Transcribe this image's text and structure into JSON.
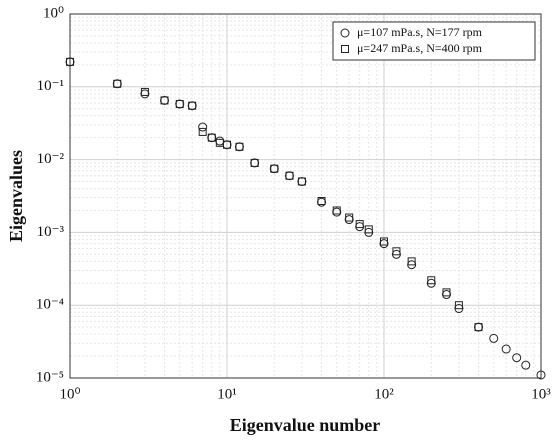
{
  "chart_data": {
    "type": "scatter",
    "xlabel": "Eigenvalue number",
    "ylabel": "Eigenvalues",
    "xscale": "log",
    "yscale": "log",
    "xlim": [
      1,
      1000
    ],
    "ylim": [
      1e-05,
      1
    ],
    "xticks": [
      {
        "value": 1,
        "label": "10⁰"
      },
      {
        "value": 10,
        "label": "10¹"
      },
      {
        "value": 100,
        "label": "10²"
      },
      {
        "value": 1000,
        "label": "10³"
      }
    ],
    "yticks": [
      {
        "value": 1e-05,
        "label": "10⁻⁵"
      },
      {
        "value": 0.0001,
        "label": "10⁻⁴"
      },
      {
        "value": 0.001,
        "label": "10⁻³"
      },
      {
        "value": 0.01,
        "label": "10⁻²"
      },
      {
        "value": 0.1,
        "label": "10⁻¹"
      },
      {
        "value": 1,
        "label": "10⁰"
      }
    ],
    "grid": true,
    "minor_grid": true,
    "legend": "upper right",
    "series": [
      {
        "name": "μ=107 mPa.s, N=177 rpm",
        "marker": "circle",
        "color": "#222222",
        "x": [
          1,
          2,
          3,
          4,
          5,
          6,
          7,
          8,
          9,
          10,
          12,
          15,
          20,
          25,
          30,
          40,
          50,
          60,
          70,
          80,
          100,
          120,
          150,
          200,
          250,
          300,
          400,
          500,
          600,
          700,
          800,
          1000
        ],
        "values": [
          0.22,
          0.11,
          0.08,
          0.065,
          0.058,
          0.055,
          0.028,
          0.02,
          0.018,
          0.016,
          0.015,
          0.009,
          0.0075,
          0.006,
          0.005,
          0.0026,
          0.0019,
          0.0015,
          0.0012,
          0.001,
          0.0007,
          0.0005,
          0.00036,
          0.0002,
          0.00014,
          9e-05,
          5e-05,
          3.5e-05,
          2.5e-05,
          1.9e-05,
          1.5e-05,
          1.1e-05
        ]
      },
      {
        "name": "μ=247 mPa.s, N=400 rpm",
        "marker": "square",
        "color": "#222222",
        "x": [
          1,
          2,
          3,
          4,
          5,
          6,
          7,
          8,
          9,
          10,
          12,
          15,
          20,
          25,
          30,
          40,
          50,
          60,
          70,
          80,
          100,
          120,
          150,
          200,
          250,
          300,
          400
        ],
        "values": [
          0.22,
          0.11,
          0.085,
          0.065,
          0.058,
          0.055,
          0.024,
          0.02,
          0.017,
          0.016,
          0.015,
          0.009,
          0.0075,
          0.006,
          0.005,
          0.0027,
          0.002,
          0.0016,
          0.0013,
          0.0011,
          0.00075,
          0.00055,
          0.0004,
          0.00022,
          0.00015,
          0.0001,
          5e-05
        ]
      }
    ]
  }
}
